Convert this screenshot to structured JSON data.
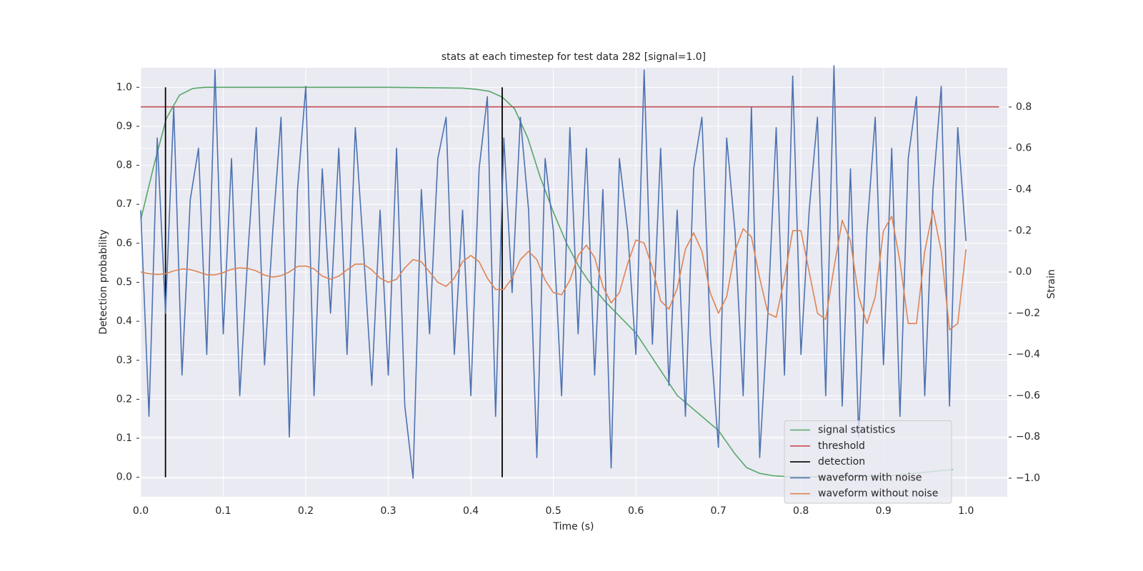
{
  "chart_data": {
    "type": "line",
    "title": "stats at each timestep for test data 282 [signal=1.0]",
    "xlabel": "Time (s)",
    "ylabel": "Detection probability",
    "y2label": "Strain",
    "xlim": [
      0,
      1.05
    ],
    "ylim": [
      -0.05,
      1.05
    ],
    "y2lim": [
      -1.09,
      0.99
    ],
    "xticks": [
      {
        "value": 0,
        "label": "0.0"
      },
      0.1,
      0.2,
      0.3,
      0.4,
      0.5,
      0.6,
      0.7,
      0.8,
      0.9,
      {
        "value": 1,
        "label": "1.0"
      }
    ],
    "yticks": [
      {
        "value": 0,
        "label": "0.0"
      },
      0.1,
      0.2,
      0.3,
      0.4,
      0.5,
      0.6,
      0.7,
      0.8,
      0.9,
      {
        "value": 1,
        "label": "1.0"
      }
    ],
    "y2ticks": [
      {
        "value": -1,
        "label": "−1.0"
      },
      {
        "value": -0.8,
        "label": "−0.8"
      },
      {
        "value": -0.6,
        "label": "−0.6"
      },
      {
        "value": -0.4,
        "label": "−0.4"
      },
      {
        "value": -0.2,
        "label": "−0.2"
      },
      {
        "value": 0,
        "label": "0.0"
      },
      0.2,
      0.4,
      0.6,
      0.8
    ],
    "grid": true,
    "legend_position": "lower right",
    "series": [
      {
        "name": "signal statistics",
        "color": "#55a868",
        "kind": "line",
        "x": [
          0,
          0.016,
          0.031,
          0.047,
          0.063,
          0.078,
          0.1,
          0.2,
          0.3,
          0.39,
          0.406,
          0.422,
          0.438,
          0.453,
          0.469,
          0.484,
          0.5,
          0.516,
          0.531,
          0.547,
          0.563,
          0.6,
          0.65,
          0.7,
          0.72,
          0.734,
          0.75,
          0.766,
          0.78,
          0.8,
          0.9,
          0.984
        ],
        "values": [
          0.66,
          0.8,
          0.92,
          0.98,
          0.997,
          1.0,
          1.0,
          1.0,
          1.0,
          0.998,
          0.995,
          0.99,
          0.975,
          0.945,
          0.87,
          0.77,
          0.68,
          0.6,
          0.54,
          0.49,
          0.45,
          0.37,
          0.21,
          0.12,
          0.06,
          0.025,
          0.01,
          0.004,
          0.002,
          0.001,
          0.002,
          0.02
        ]
      },
      {
        "name": "threshold",
        "color": "#c44e52",
        "kind": "line",
        "x": [
          0,
          1.04
        ],
        "values": [
          0.95,
          0.95
        ]
      },
      {
        "name": "detection",
        "color": "#000000",
        "kind": "vline",
        "x": [
          0.03,
          0.438
        ],
        "ymin": 0,
        "ymax": 1
      },
      {
        "name": "waveform with noise",
        "color": "#4c72b0",
        "kind": "line",
        "axis": "y2",
        "x": [
          0,
          0.01,
          0.02,
          0.03,
          0.04,
          0.05,
          0.06,
          0.07,
          0.08,
          0.09,
          0.1,
          0.11,
          0.12,
          0.13,
          0.14,
          0.15,
          0.16,
          0.17,
          0.18,
          0.19,
          0.2,
          0.21,
          0.22,
          0.23,
          0.24,
          0.25,
          0.26,
          0.27,
          0.28,
          0.29,
          0.3,
          0.31,
          0.32,
          0.33,
          0.34,
          0.35,
          0.36,
          0.37,
          0.38,
          0.39,
          0.4,
          0.41,
          0.42,
          0.43,
          0.44,
          0.45,
          0.46,
          0.47,
          0.48,
          0.49,
          0.5,
          0.51,
          0.52,
          0.53,
          0.54,
          0.55,
          0.56,
          0.57,
          0.58,
          0.59,
          0.6,
          0.61,
          0.62,
          0.63,
          0.64,
          0.65,
          0.66,
          0.67,
          0.68,
          0.69,
          0.7,
          0.71,
          0.72,
          0.73,
          0.74,
          0.75,
          0.76,
          0.77,
          0.78,
          0.79,
          0.8,
          0.81,
          0.82,
          0.83,
          0.84,
          0.85,
          0.86,
          0.87,
          0.88,
          0.89,
          0.9,
          0.91,
          0.92,
          0.93,
          0.94,
          0.95,
          0.96,
          0.97,
          0.98,
          0.99,
          1.0
        ],
        "values": [
          0.3,
          -0.7,
          0.65,
          -0.2,
          0.8,
          -0.5,
          0.35,
          0.6,
          -0.4,
          0.98,
          -0.3,
          0.55,
          -0.6,
          0.1,
          0.7,
          -0.45,
          0.2,
          0.75,
          -0.8,
          0.4,
          0.9,
          -0.6,
          0.5,
          -0.2,
          0.6,
          -0.4,
          0.7,
          0.1,
          -0.55,
          0.3,
          -0.5,
          0.6,
          -0.65,
          -1.0,
          0.4,
          -0.3,
          0.55,
          0.75,
          -0.4,
          0.3,
          -0.6,
          0.5,
          0.85,
          -0.7,
          0.65,
          -0.1,
          0.75,
          0.3,
          -0.9,
          0.55,
          0.2,
          -0.6,
          0.7,
          -0.3,
          0.6,
          -0.5,
          0.4,
          -0.95,
          0.55,
          0.2,
          -0.4,
          0.98,
          -0.35,
          0.6,
          -0.55,
          0.3,
          -0.7,
          0.5,
          0.75,
          -0.3,
          -0.85,
          0.65,
          0.2,
          -0.6,
          0.8,
          -0.9,
          -0.2,
          0.7,
          -0.5,
          0.95,
          -0.4,
          0.3,
          0.75,
          -0.6,
          1.0,
          -0.65,
          0.5,
          -0.8,
          0.2,
          0.75,
          -0.45,
          0.6,
          -0.7,
          0.55,
          0.85,
          -0.6,
          0.4,
          0.9,
          -0.65,
          0.7,
          0.15
        ]
      },
      {
        "name": "waveform without noise",
        "color": "#dd8452",
        "kind": "line",
        "axis": "y2",
        "x": [
          0,
          0.01,
          0.02,
          0.03,
          0.04,
          0.05,
          0.06,
          0.07,
          0.08,
          0.09,
          0.1,
          0.11,
          0.12,
          0.13,
          0.14,
          0.15,
          0.16,
          0.17,
          0.18,
          0.19,
          0.2,
          0.21,
          0.22,
          0.23,
          0.24,
          0.25,
          0.26,
          0.27,
          0.28,
          0.29,
          0.3,
          0.31,
          0.32,
          0.33,
          0.34,
          0.35,
          0.36,
          0.37,
          0.38,
          0.39,
          0.4,
          0.41,
          0.42,
          0.43,
          0.44,
          0.45,
          0.46,
          0.47,
          0.48,
          0.49,
          0.5,
          0.51,
          0.52,
          0.53,
          0.54,
          0.55,
          0.56,
          0.57,
          0.58,
          0.59,
          0.6,
          0.61,
          0.62,
          0.63,
          0.64,
          0.65,
          0.66,
          0.67,
          0.68,
          0.69,
          0.7,
          0.71,
          0.72,
          0.73,
          0.74,
          0.75,
          0.76,
          0.77,
          0.78,
          0.79,
          0.8,
          0.81,
          0.82,
          0.83,
          0.84,
          0.85,
          0.86,
          0.87,
          0.88,
          0.89,
          0.9,
          0.91,
          0.92,
          0.93,
          0.94,
          0.95,
          0.96,
          0.97,
          0.98,
          0.99,
          1.0
        ],
        "values": [
          0.0,
          -0.008,
          -0.012,
          -0.008,
          0.005,
          0.015,
          0.012,
          0.0,
          -0.013,
          -0.014,
          -0.003,
          0.013,
          0.02,
          0.017,
          0.005,
          -0.015,
          -0.025,
          -0.018,
          0.0,
          0.027,
          0.029,
          0.015,
          -0.02,
          -0.035,
          -0.02,
          0.01,
          0.038,
          0.038,
          0.01,
          -0.03,
          -0.05,
          -0.035,
          0.02,
          0.06,
          0.05,
          0.0,
          -0.05,
          -0.07,
          -0.03,
          0.05,
          0.08,
          0.05,
          -0.03,
          -0.085,
          -0.085,
          -0.03,
          0.06,
          0.1,
          0.06,
          -0.04,
          -0.1,
          -0.11,
          -0.04,
          0.08,
          0.13,
          0.07,
          -0.07,
          -0.15,
          -0.1,
          0.04,
          0.155,
          0.14,
          0.02,
          -0.14,
          -0.18,
          -0.08,
          0.11,
          0.19,
          0.1,
          -0.1,
          -0.2,
          -0.12,
          0.1,
          0.21,
          0.17,
          -0.03,
          -0.2,
          -0.22,
          -0.03,
          0.2,
          0.2,
          0.0,
          -0.2,
          -0.23,
          0.02,
          0.25,
          0.15,
          -0.12,
          -0.25,
          -0.12,
          0.2,
          0.27,
          0.05,
          -0.25,
          -0.25,
          0.1,
          0.3,
          0.1,
          -0.28,
          -0.25,
          0.11
        ]
      }
    ]
  }
}
